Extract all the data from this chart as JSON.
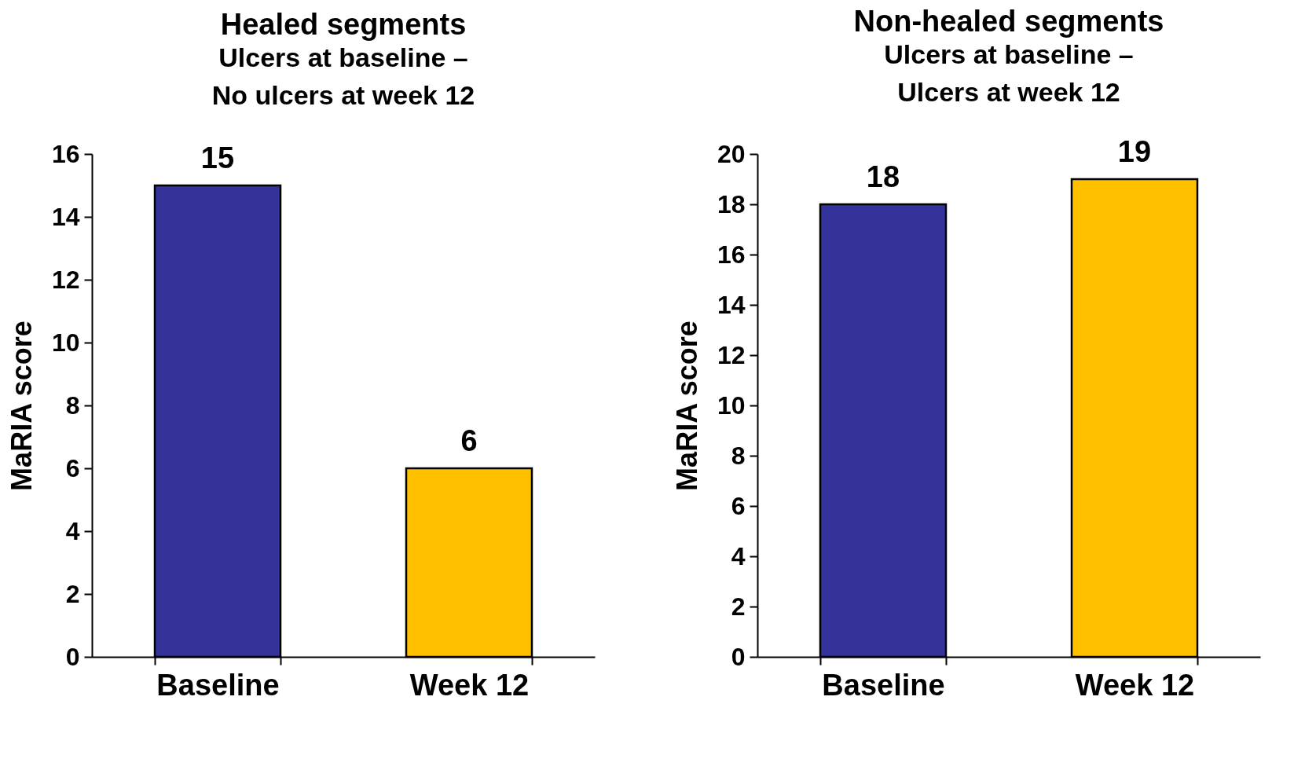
{
  "chart_data": [
    {
      "type": "bar",
      "title": "Healed segments",
      "subtitle": "Ulcers at baseline –\nNo ulcers at week 12",
      "ylabel": "MaRIA score",
      "categories": [
        "Baseline",
        "Week 12"
      ],
      "values": [
        15,
        6
      ],
      "colors": [
        "#333399",
        "#ffc000"
      ],
      "ylim": [
        0,
        16
      ],
      "yticks": [
        0,
        2,
        4,
        6,
        8,
        10,
        12,
        14,
        16
      ],
      "data_labels": true
    },
    {
      "type": "bar",
      "title": "Non-healed segments",
      "subtitle": "Ulcers at baseline –\nUlcers at week 12",
      "ylabel": "MaRIA score",
      "categories": [
        "Baseline",
        "Week 12"
      ],
      "values": [
        18,
        19
      ],
      "colors": [
        "#333399",
        "#ffc000"
      ],
      "ylim": [
        0,
        20
      ],
      "yticks": [
        0,
        2,
        4,
        6,
        8,
        10,
        12,
        14,
        16,
        18,
        20
      ],
      "data_labels": true
    }
  ]
}
